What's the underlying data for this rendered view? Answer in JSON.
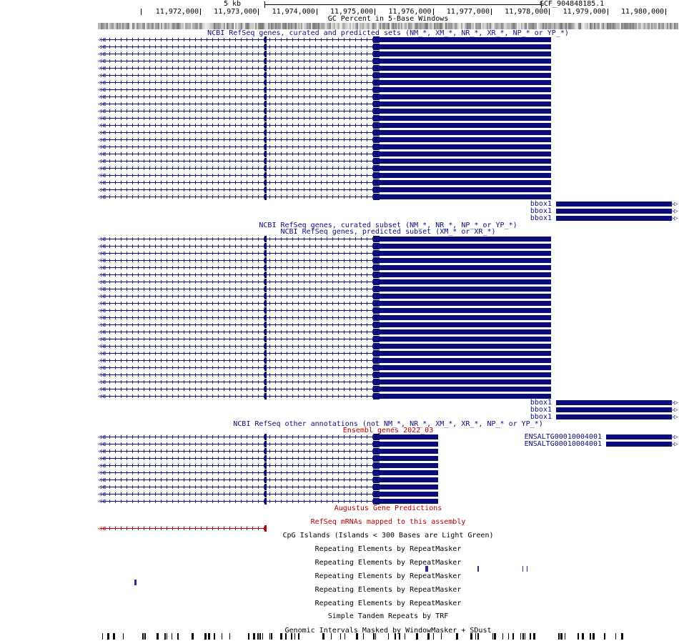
{
  "ruler": {
    "scale_label": "5 kb",
    "assembly": "GCF_904848185.1",
    "ticks": [
      "11,972,000",
      "11,973,000",
      "11,974,000",
      "11,975,000",
      "11,976,000",
      "11,977,000",
      "11,978,000",
      "11,979,000",
      "11,980,000"
    ]
  },
  "tracks": {
    "gc": "GC Percent in 5-Base Windows",
    "refseq_all": "NCBI RefSeq genes, curated and predicted sets (NM_*, XM_*, NR_*, XR_*, NP_* or YP_*)",
    "refseq_curated": "NCBI RefSeq genes, curated subset (NM_*, NR_*, NP_* or YP_*)",
    "refseq_predicted": "NCBI RefSeq genes, predicted subset (XM_* or XR_*)",
    "refseq_other": "NCBI RefSeq other annotations (not NM_*, NR_*, XM_*, XR_*, NP_* or YP_*)",
    "ensembl": "Ensembl genes 2022_03",
    "augustus": "Augustus Gene Predictions",
    "refseq_mrna": "RefSeq mRNAs mapped to this assembly",
    "cpg": "CpG Islands (Islands < 300 Bases are Light Green)",
    "rmsk": [
      "Repeating Elements by RepeatMasker",
      "Repeating Elements by RepeatMasker",
      "Repeating Elements by RepeatMasker",
      "Repeating Elements by RepeatMasker",
      "Repeating Elements by RepeatMasker"
    ],
    "trf": "Simple Tandem Repeats by TRF",
    "windowmasker": "Genomic Intervals Masked by WindowMasker + SDust"
  },
  "gene_labels": {
    "bbox1": "bbox1",
    "ensembl_gene": "ENSALTG00010004001"
  },
  "colors": {
    "gene": "#0c0c78",
    "ensembl_title": "#b40000",
    "mrna": "#b40000"
  }
}
